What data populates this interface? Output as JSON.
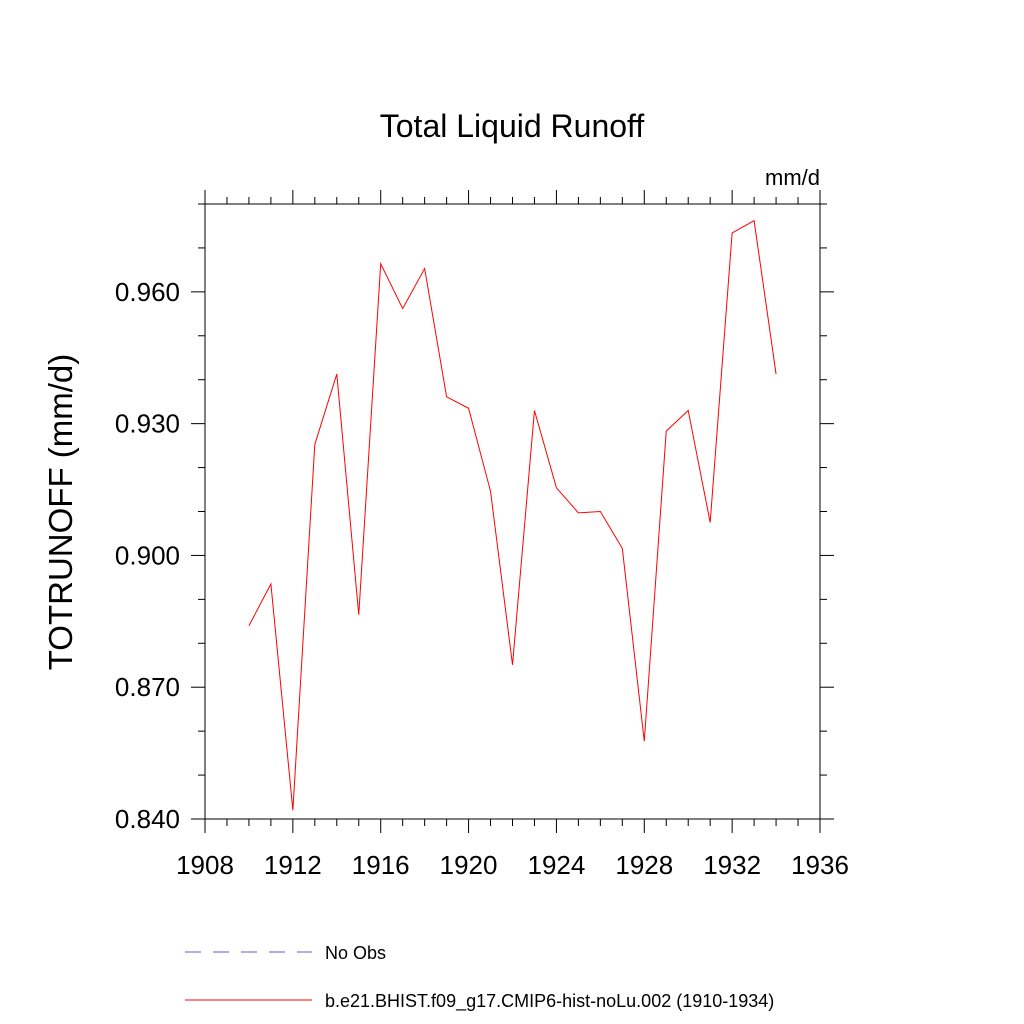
{
  "chart_data": {
    "type": "line",
    "title": "Total Liquid Runoff",
    "units_label": "mm/d",
    "ylabel": "TOTRUNOFF  (mm/d)",
    "xlabel": "",
    "xlim": [
      1908,
      1936
    ],
    "ylim": [
      0.84,
      0.98
    ],
    "x_major_ticks": [
      1908,
      1912,
      1916,
      1920,
      1924,
      1928,
      1932,
      1936
    ],
    "x_tick_labels": [
      "1908",
      "1912",
      "1916",
      "1920",
      "1924",
      "1928",
      "1932",
      "1936"
    ],
    "x_minor_step": 1,
    "y_major_ticks": [
      0.84,
      0.87,
      0.9,
      0.93,
      0.96
    ],
    "y_tick_labels": [
      "0.840",
      "0.870",
      "0.900",
      "0.930",
      "0.960"
    ],
    "y_minor_step": 0.01,
    "grid": false,
    "legend_position": "bottom",
    "series": [
      {
        "name": "No Obs",
        "color": "#6a5acd",
        "dash": "dashed",
        "x": [],
        "y": []
      },
      {
        "name": "b.e21.BHIST.f09_g17.CMIP6-hist-noLu.002 (1910-1934)",
        "color": "#ff0000",
        "dash": "solid",
        "x": [
          1910,
          1911,
          1912,
          1913,
          1914,
          1915,
          1916,
          1917,
          1918,
          1919,
          1920,
          1921,
          1922,
          1923,
          1924,
          1925,
          1926,
          1927,
          1928,
          1929,
          1930,
          1931,
          1932,
          1933,
          1934
        ],
        "y": [
          0.884,
          0.8935,
          0.842,
          0.9253,
          0.9413,
          0.8865,
          0.9664,
          0.9562,
          0.9653,
          0.9361,
          0.9335,
          0.9146,
          0.8751,
          0.933,
          0.9154,
          0.9097,
          0.91,
          0.9016,
          0.8577,
          0.9283,
          0.933,
          0.9075,
          0.9734,
          0.9762,
          0.9413
        ]
      }
    ]
  }
}
